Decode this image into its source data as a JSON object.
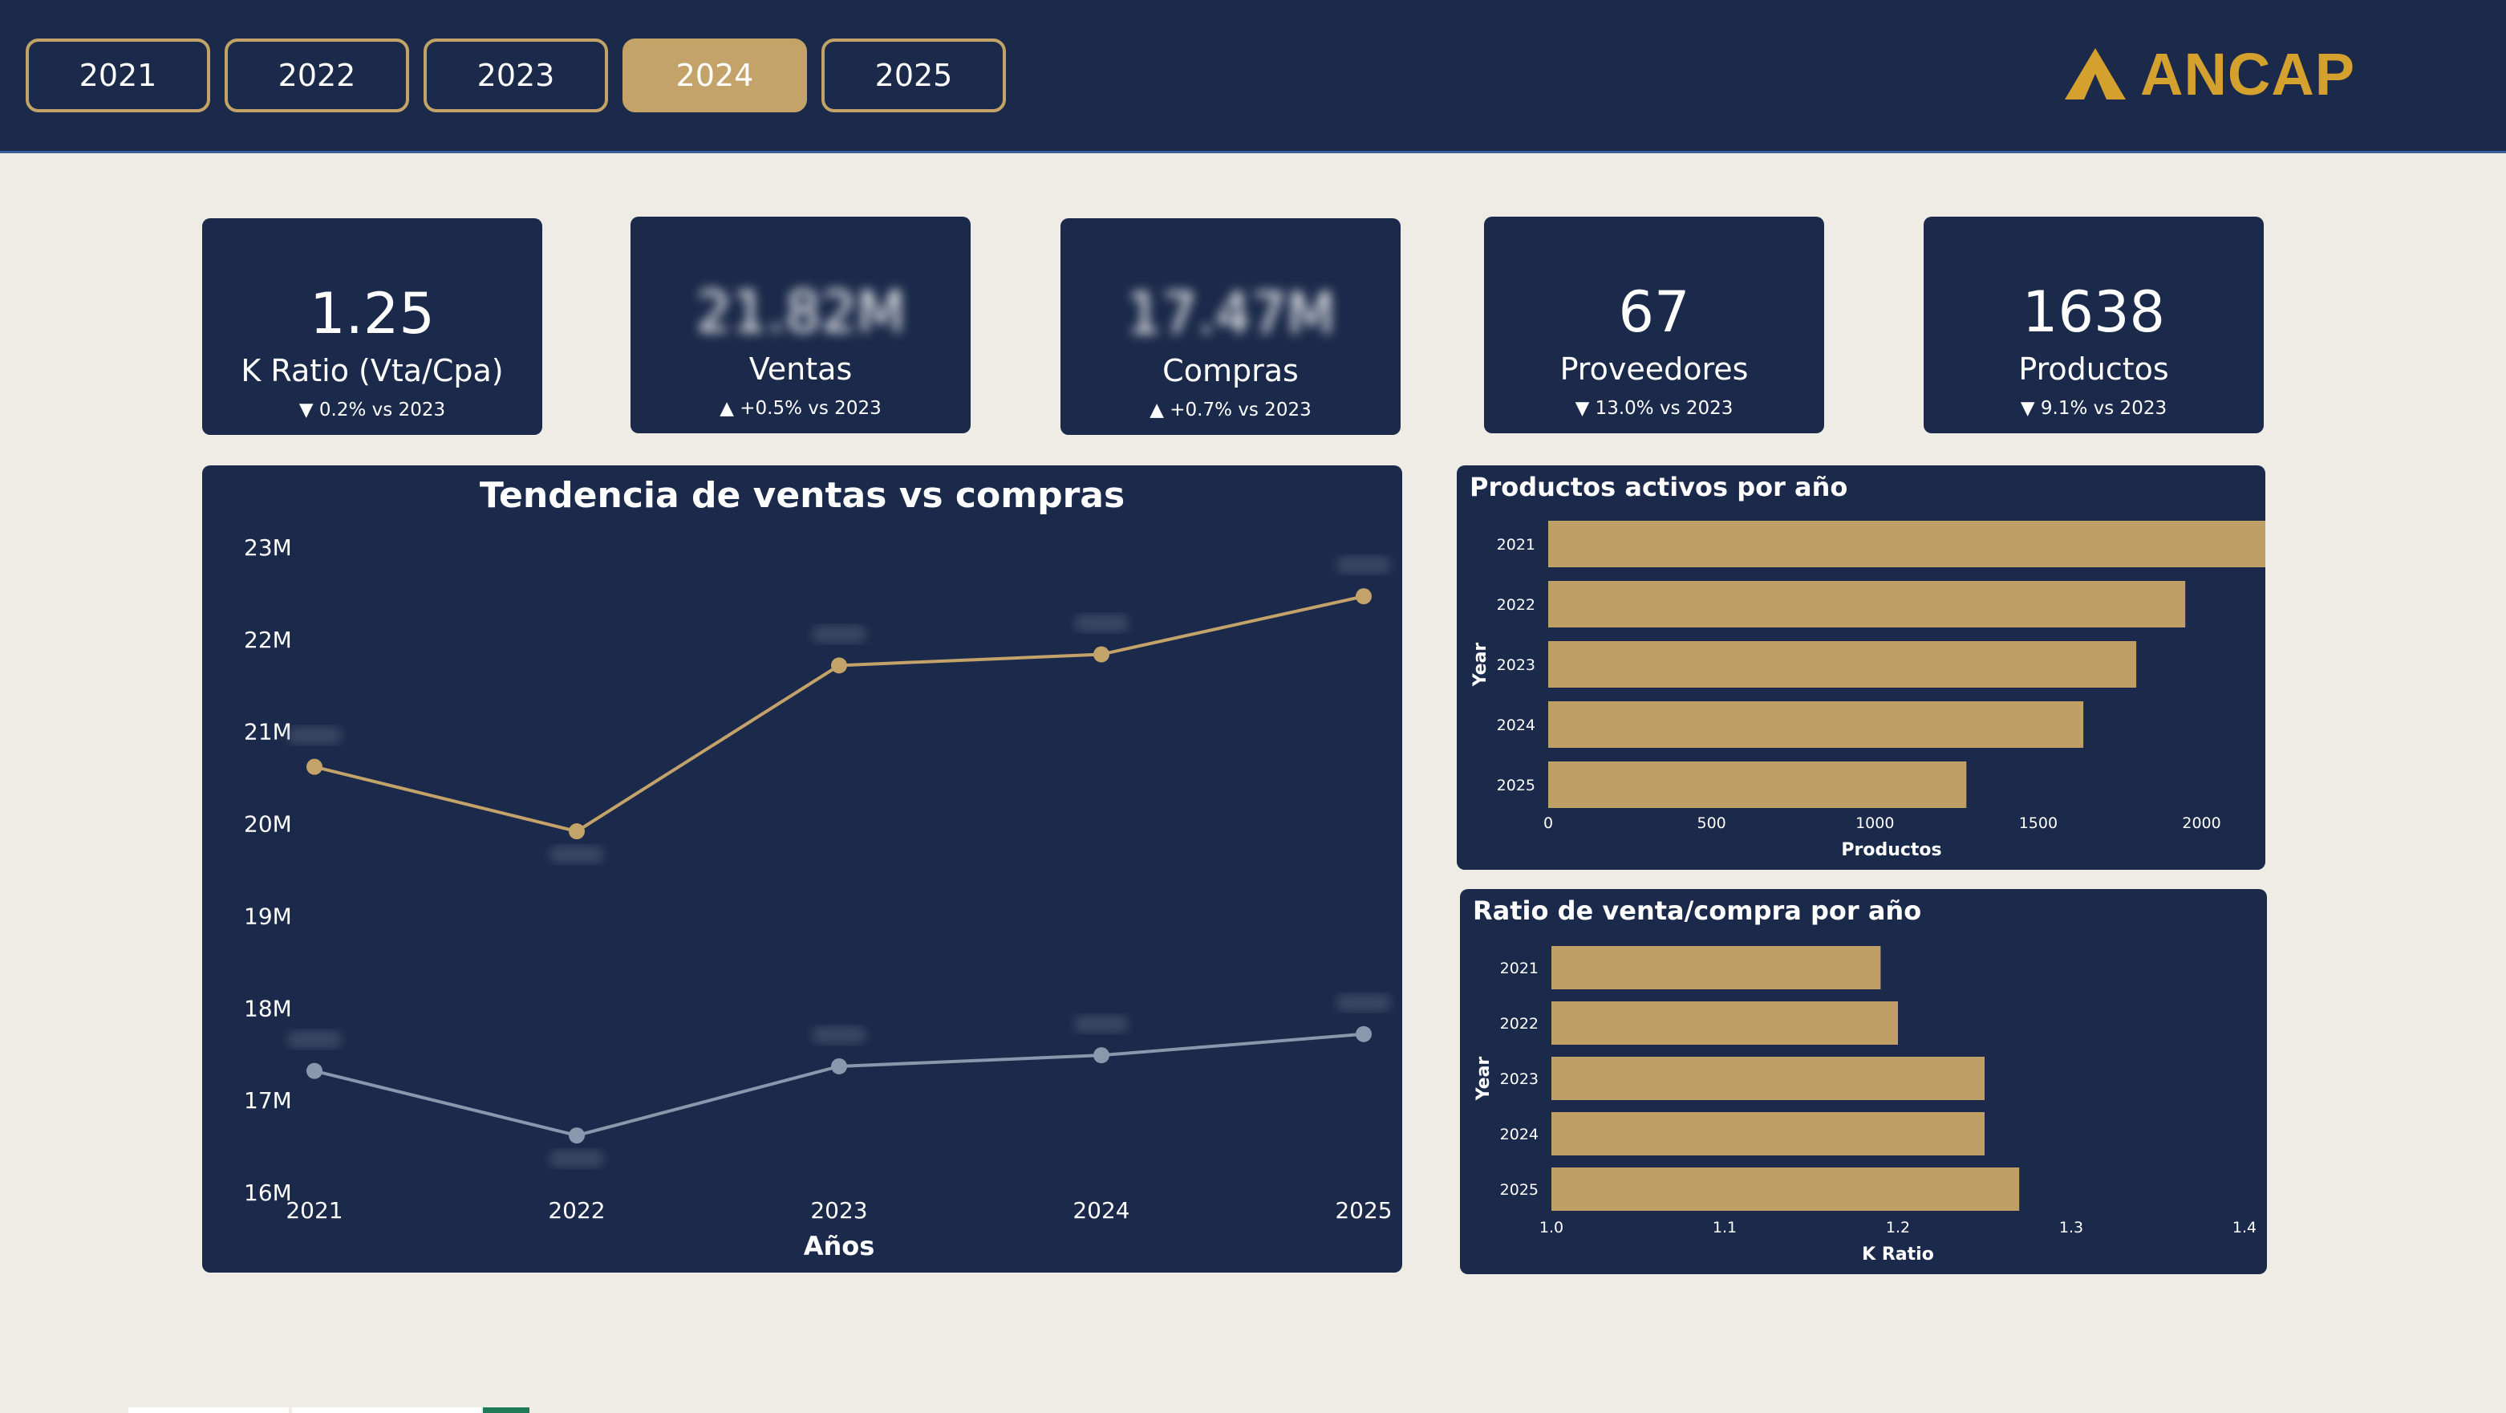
{
  "year_tabs": [
    {
      "label": "2021",
      "active": false
    },
    {
      "label": "2022",
      "active": false
    },
    {
      "label": "2023",
      "active": false
    },
    {
      "label": "2024",
      "active": true
    },
    {
      "label": "2025",
      "active": false
    }
  ],
  "brand": {
    "name": "ANCAP",
    "icon": "triangle-logo-icon"
  },
  "kpis": [
    {
      "value": "1.25",
      "label": "K Ratio (Vta/Cpa)",
      "delta": "0.2% vs 2023",
      "direction": "down",
      "blurred": false
    },
    {
      "value": "21.82M",
      "label": "Ventas",
      "delta": "+0.5% vs 2023",
      "direction": "up",
      "blurred": true
    },
    {
      "value": "17.47M",
      "label": "Compras",
      "delta": "+0.7% vs 2023",
      "direction": "up",
      "blurred": true
    },
    {
      "value": "67",
      "label": "Proveedores",
      "delta": "13.0% vs 2023",
      "direction": "down",
      "blurred": false
    },
    {
      "value": "1638",
      "label": "Productos",
      "delta": "9.1% vs 2023",
      "direction": "down",
      "blurred": false
    }
  ],
  "colors": {
    "navy": "#1b2a4a",
    "gold": "#c4a366",
    "bar": "#bf9f66",
    "line_ventas": "#c4a36a",
    "line_compras": "#8a98ad",
    "background": "#efece6",
    "logo": "#d4a12e"
  },
  "chart_data": [
    {
      "type": "line",
      "title": "Tendencia de ventas vs compras",
      "xlabel": "Años",
      "ylabel": "",
      "x": [
        "2021",
        "2022",
        "2023",
        "2024",
        "2025"
      ],
      "y_ticks": [
        "16M",
        "17M",
        "18M",
        "19M",
        "20M",
        "21M",
        "22M",
        "23M"
      ],
      "ylim": [
        16,
        23
      ],
      "series": [
        {
          "key": "ventas",
          "values": [
            20.6,
            19.9,
            21.7,
            21.82,
            22.45
          ]
        },
        {
          "key": "compras",
          "values": [
            17.3,
            16.6,
            17.35,
            17.47,
            17.7
          ]
        }
      ]
    },
    {
      "type": "bar",
      "orientation": "horizontal",
      "title": "Productos activos por año",
      "xlabel": "Productos",
      "ylabel": "Year",
      "categories": [
        "2021",
        "2022",
        "2023",
        "2024",
        "2025"
      ],
      "values": [
        2200,
        1950,
        1800,
        1638,
        1280
      ],
      "x_ticks": [
        "0",
        "500",
        "1000",
        "1500",
        "2000"
      ],
      "xlim": [
        0,
        2200
      ]
    },
    {
      "type": "bar",
      "orientation": "horizontal",
      "title": "Ratio de venta/compra por año",
      "xlabel": "K Ratio",
      "ylabel": "Year",
      "categories": [
        "2021",
        "2022",
        "2023",
        "2024",
        "2025"
      ],
      "values": [
        1.19,
        1.2,
        1.25,
        1.25,
        1.27
      ],
      "x_ticks": [
        "1.0",
        "1.1",
        "1.2",
        "1.3",
        "1.4"
      ],
      "xlim": [
        1.0,
        1.4
      ]
    }
  ]
}
